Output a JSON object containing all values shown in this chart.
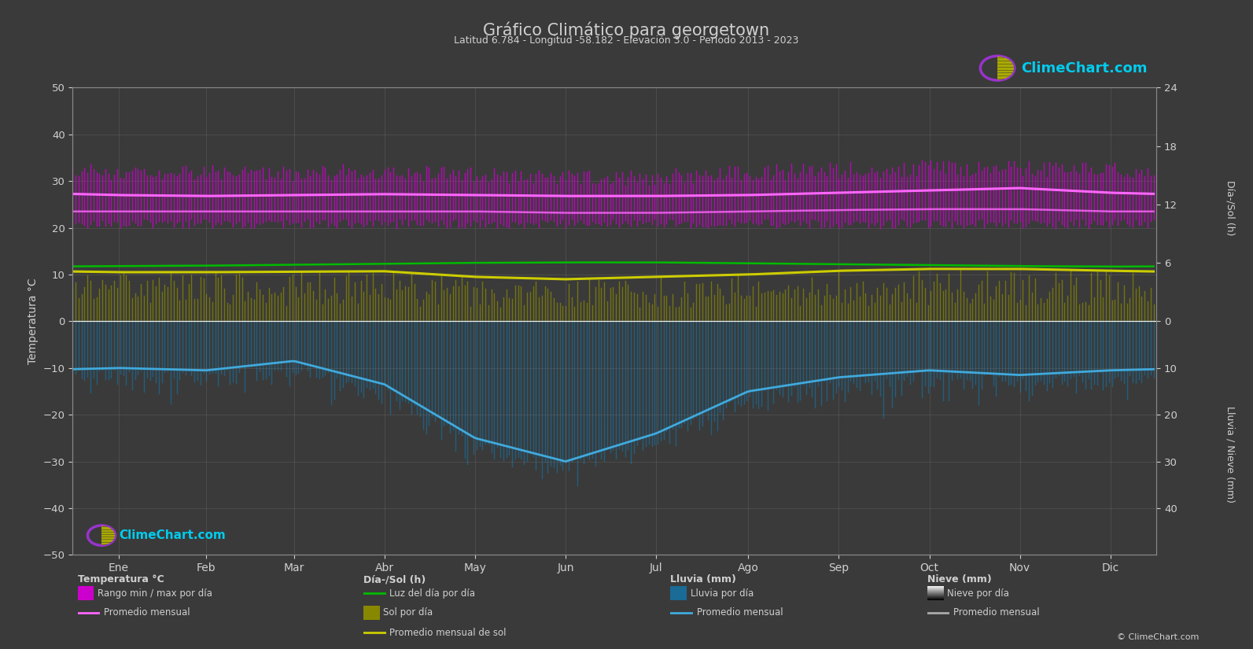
{
  "title": "Gráfico Climático para georgetown",
  "subtitle": "Latitud 6.784 - Longitud -58.182 - Elevación 3.0 - Periodo 2013 - 2023",
  "background_color": "#3a3a3a",
  "text_color": "#d0d0d0",
  "months": [
    "Ene",
    "Feb",
    "Mar",
    "Abr",
    "May",
    "Jun",
    "Jul",
    "Ago",
    "Sep",
    "Oct",
    "Nov",
    "Dic"
  ],
  "temp_ylim": [
    -50,
    50
  ],
  "temp_max_daily": [
    30,
    30,
    30,
    30,
    29.5,
    29,
    29,
    30,
    30.5,
    31,
    31,
    30.5
  ],
  "temp_min_daily": [
    22,
    22,
    22,
    22,
    22,
    22,
    22,
    22,
    22,
    22,
    22,
    22
  ],
  "temp_max_avg": [
    27.0,
    26.8,
    27.0,
    27.2,
    27.0,
    26.8,
    26.8,
    27.0,
    27.5,
    28.0,
    28.5,
    27.5
  ],
  "temp_min_avg": [
    23.5,
    23.5,
    23.5,
    23.5,
    23.5,
    23.2,
    23.2,
    23.5,
    23.8,
    24.0,
    24.0,
    23.5
  ],
  "daylight_daily": [
    11.8,
    11.9,
    12.1,
    12.3,
    12.5,
    12.6,
    12.6,
    12.4,
    12.2,
    12.0,
    11.8,
    11.7
  ],
  "sunshine_daily": [
    10.5,
    10.5,
    10.6,
    10.7,
    9.5,
    9.0,
    9.5,
    10.0,
    10.8,
    11.2,
    11.2,
    10.8
  ],
  "sunshine_avg": [
    10.5,
    10.5,
    10.6,
    10.7,
    9.5,
    9.0,
    9.5,
    10.0,
    10.8,
    11.2,
    11.2,
    10.8
  ],
  "rain_daily_avg": [
    -10.0,
    -10.5,
    -8.5,
    -13.5,
    -25.0,
    -30.0,
    -24.0,
    -15.0,
    -12.0,
    -10.5,
    -11.5,
    -10.5
  ],
  "days_per_month": [
    31,
    28,
    31,
    30,
    31,
    30,
    31,
    31,
    30,
    31,
    30,
    31
  ],
  "grid_color": "#888888",
  "temp_fill_color": "#cc00cc",
  "sunshine_fill_color": "#888800",
  "rain_fill_color": "#1a6b96",
  "daylight_line_color": "#00bb00",
  "sunshine_avg_line_color": "#cccc00",
  "temp_avg_line_color": "#ff66ff",
  "rain_avg_line_color": "#40aadd",
  "logo_color": "#00ccee",
  "copyright_text": "© ClimeChart.com"
}
